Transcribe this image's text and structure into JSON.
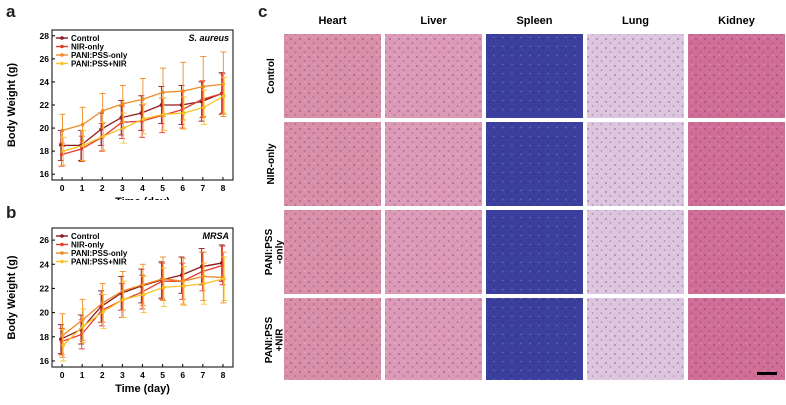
{
  "panel_letters": [
    "a",
    "b",
    "c"
  ],
  "chart_data": [
    {
      "type": "line",
      "title": "S. aureus",
      "xlabel": "Time (day)",
      "ylabel": "Body Weight (g)",
      "x": [
        0,
        1,
        2,
        3,
        4,
        5,
        6,
        7,
        8
      ],
      "ylim": [
        15.5,
        28.5
      ],
      "yticks": [
        16,
        18,
        20,
        22,
        24,
        26,
        28
      ],
      "legend_position": "top-left",
      "series": [
        {
          "name": "Control",
          "color": "#8b1a1a",
          "values": [
            18.5,
            18.5,
            19.9,
            20.9,
            21.3,
            22.0,
            22.0,
            22.3,
            23.0
          ],
          "errors": [
            1.3,
            1.3,
            1.4,
            1.5,
            1.5,
            1.6,
            1.7,
            1.7,
            1.8
          ]
        },
        {
          "name": "NIR-only",
          "color": "#e63c2e",
          "values": [
            17.7,
            18.2,
            19.2,
            20.5,
            20.6,
            21.1,
            21.6,
            22.5,
            23.0
          ],
          "errors": [
            1.0,
            1.1,
            1.2,
            1.4,
            1.4,
            1.5,
            1.6,
            1.6,
            1.7
          ]
        },
        {
          "name": "PANI:PSS-only",
          "color": "#f08a24",
          "values": [
            19.8,
            20.3,
            21.5,
            22.1,
            22.5,
            23.1,
            23.2,
            23.6,
            23.8
          ],
          "errors": [
            1.4,
            1.5,
            1.5,
            1.6,
            1.8,
            2.1,
            2.5,
            2.6,
            2.8
          ]
        },
        {
          "name": "PANI:PSS+NIR",
          "color": "#f7c325",
          "values": [
            18.0,
            18.5,
            19.3,
            20.0,
            20.8,
            21.2,
            21.3,
            21.8,
            22.8
          ],
          "errors": [
            1.2,
            1.3,
            1.2,
            1.3,
            1.3,
            1.4,
            1.4,
            1.5,
            1.6
          ]
        }
      ]
    },
    {
      "type": "line",
      "title": "MRSA",
      "xlabel": "Time (day)",
      "ylabel": "Body Weight (g)",
      "x": [
        0,
        1,
        2,
        3,
        4,
        5,
        6,
        7,
        8
      ],
      "ylim": [
        15.5,
        27.0
      ],
      "yticks": [
        16,
        18,
        20,
        22,
        24,
        26
      ],
      "legend_position": "top-left",
      "series": [
        {
          "name": "Control",
          "color": "#8b1a1a",
          "values": [
            17.8,
            18.6,
            20.5,
            21.6,
            22.2,
            22.7,
            23.1,
            23.8,
            24.1
          ],
          "errors": [
            1.2,
            1.2,
            1.3,
            1.4,
            1.4,
            1.5,
            1.5,
            1.5,
            1.5
          ]
        },
        {
          "name": "NIR-only",
          "color": "#e63c2e",
          "values": [
            17.6,
            18.2,
            20.2,
            21.0,
            21.7,
            22.6,
            22.6,
            23.4,
            23.9
          ],
          "errors": [
            1.1,
            1.2,
            1.3,
            1.4,
            1.4,
            1.5,
            1.5,
            1.6,
            1.6
          ]
        },
        {
          "name": "PANI:PSS-only",
          "color": "#f08a24",
          "values": [
            18.1,
            19.4,
            20.8,
            21.8,
            22.3,
            22.8,
            22.6,
            23.0,
            22.9
          ],
          "errors": [
            1.8,
            1.7,
            1.6,
            1.6,
            1.7,
            1.8,
            1.9,
            2.0,
            2.1
          ]
        },
        {
          "name": "PANI:PSS+NIR",
          "color": "#f7c325",
          "values": [
            17.3,
            18.9,
            20.1,
            21.1,
            21.5,
            22.1,
            22.2,
            22.4,
            22.8
          ],
          "errors": [
            1.3,
            1.4,
            1.4,
            1.5,
            1.5,
            1.6,
            1.6,
            1.7,
            1.8
          ]
        }
      ]
    }
  ],
  "histology": {
    "columns": [
      "Heart",
      "Liver",
      "Spleen",
      "Lung",
      "Kidney"
    ],
    "rows": [
      "Control",
      "NIR-only",
      "PANI:PSS\n-only",
      "PANI:PSS\n+NIR"
    ],
    "tile_colors": {
      "Heart": "#d98fa7",
      "Liver": "#dd9ab6",
      "Spleen": "#3b3f9e",
      "Lung": "#ddc6dd",
      "Kidney": "#d06e95"
    }
  }
}
